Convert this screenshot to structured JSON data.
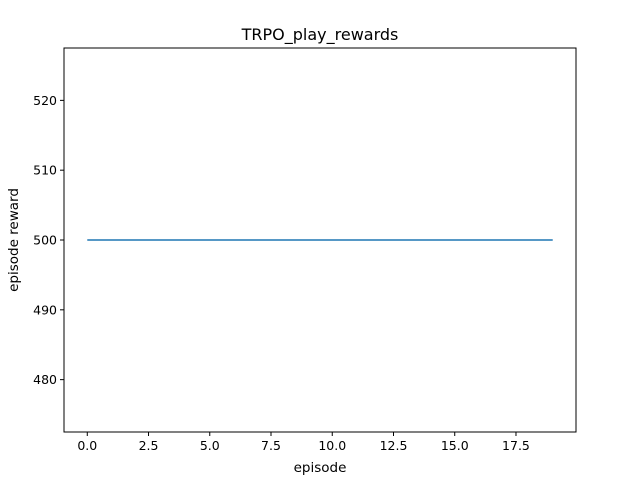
{
  "chart_data": {
    "type": "line",
    "title": "TRPO_play_rewards",
    "xlabel": "episode",
    "ylabel": "episode reward",
    "x": [
      0,
      1,
      2,
      3,
      4,
      5,
      6,
      7,
      8,
      9,
      10,
      11,
      12,
      13,
      14,
      15,
      16,
      17,
      18,
      19
    ],
    "series": [
      {
        "values": [
          500,
          500,
          500,
          500,
          500,
          500,
          500,
          500,
          500,
          500,
          500,
          500,
          500,
          500,
          500,
          500,
          500,
          500,
          500,
          500
        ],
        "color": "#1f77b4"
      }
    ],
    "xlim": [
      -0.95,
      19.95
    ],
    "ylim": [
      472.5,
      527.5
    ],
    "xticks": [
      0.0,
      2.5,
      5.0,
      7.5,
      10.0,
      12.5,
      15.0,
      17.5
    ],
    "xtick_labels": [
      "0.0",
      "2.5",
      "5.0",
      "7.5",
      "10.0",
      "12.5",
      "15.0",
      "17.5"
    ],
    "yticks": [
      480,
      490,
      500,
      510,
      520
    ],
    "ytick_labels": [
      "480",
      "490",
      "500",
      "510",
      "520"
    ],
    "grid": false,
    "legend": "none"
  }
}
